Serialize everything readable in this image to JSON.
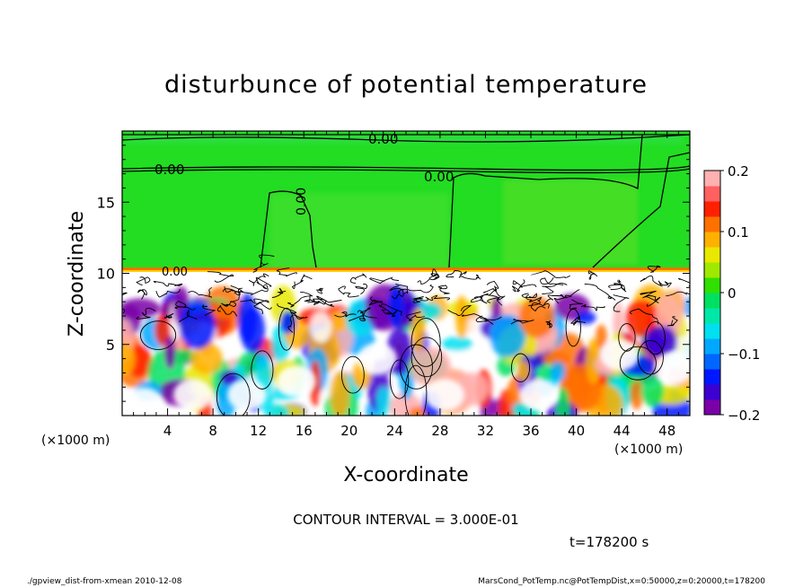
{
  "chart_data": {
    "type": "heatmap",
    "title": "disturbunce of potential temperature",
    "xlabel": "X-coordinate",
    "ylabel": "Z-coordinate",
    "x_unit": "(×1000 m)",
    "y_unit": "(×1000 m)",
    "x_ticks": [
      4,
      8,
      12,
      16,
      20,
      24,
      28,
      32,
      36,
      40,
      44,
      48
    ],
    "y_ticks": [
      5,
      10,
      15
    ],
    "xlim": [
      0,
      50
    ],
    "ylim": [
      0,
      20
    ],
    "colorbar": {
      "range": [
        -0.2,
        0.2
      ],
      "tick_values": [
        0.2,
        0.1,
        0,
        -0.1,
        -0.2
      ],
      "tick_labels": [
        "0.2",
        "0.1",
        "0",
        "−0.1",
        "−0.2"
      ],
      "colors": [
        "#7a00a8",
        "#3c00d0",
        "#0018ff",
        "#0066ff",
        "#00a8ff",
        "#00e0f0",
        "#00e8a8",
        "#00e060",
        "#30e000",
        "#a0e800",
        "#e8e800",
        "#ffb000",
        "#ff7000",
        "#ff2000",
        "#ff6060",
        "#ffb0b0"
      ]
    },
    "contour_labels": [
      "0.00",
      "0.00",
      "0.00",
      "0.00",
      "0.00"
    ],
    "contour_interval_text": "CONTOUR INTERVAL = 3.000E-01",
    "time_text": "t=178200 s"
  },
  "footer": {
    "left": "./gpview_dist-from-xmean  2010-12-08",
    "right": "MarsCond_PotTemp.nc@PotTempDist,x=0:50000,z=0:20000,t=178200"
  }
}
